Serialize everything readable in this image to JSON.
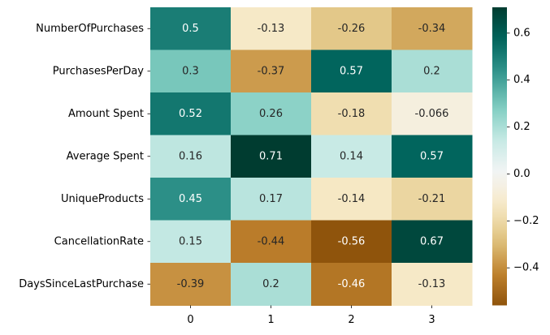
{
  "chart_data": {
    "type": "heatmap",
    "title": "",
    "xlabel": "",
    "ylabel": "",
    "rows": [
      "NumberOfPurchases",
      "PurchasesPerDay",
      "Amount Spent",
      "Average Spent",
      "UniqueProducts",
      "CancellationRate",
      "DaysSinceLastPurchase"
    ],
    "columns": [
      "0",
      "1",
      "2",
      "3"
    ],
    "values": [
      [
        0.5,
        -0.13,
        -0.26,
        -0.34
      ],
      [
        0.3,
        -0.37,
        0.57,
        0.2
      ],
      [
        0.52,
        0.26,
        -0.18,
        -0.066
      ],
      [
        0.16,
        0.71,
        0.14,
        0.57
      ],
      [
        0.45,
        0.17,
        -0.14,
        -0.21
      ],
      [
        0.15,
        -0.44,
        -0.56,
        0.67
      ],
      [
        -0.39,
        0.2,
        -0.46,
        -0.13
      ]
    ],
    "cell_labels": [
      [
        "0.5",
        "-0.13",
        "-0.26",
        "-0.34"
      ],
      [
        "0.3",
        "-0.37",
        "0.57",
        "0.2"
      ],
      [
        "0.52",
        "0.26",
        "-0.18",
        "-0.066"
      ],
      [
        "0.16",
        "0.71",
        "0.14",
        "0.57"
      ],
      [
        "0.45",
        "0.17",
        "-0.14",
        "-0.21"
      ],
      [
        "0.15",
        "-0.44",
        "-0.56",
        "0.67"
      ],
      [
        "-0.39",
        "0.2",
        "-0.46",
        "-0.13"
      ]
    ],
    "colormap": "BrBG",
    "color_range": [
      -0.56,
      0.71
    ],
    "colorbar_ticks": [
      0.6,
      0.4,
      0.2,
      0.0,
      -0.2,
      -0.4
    ],
    "colorbar_tick_labels": [
      "0.6",
      "0.4",
      "0.2",
      "0.0",
      "−0.2",
      "−0.4"
    ],
    "grid": false,
    "legend": "colorbar-right"
  }
}
